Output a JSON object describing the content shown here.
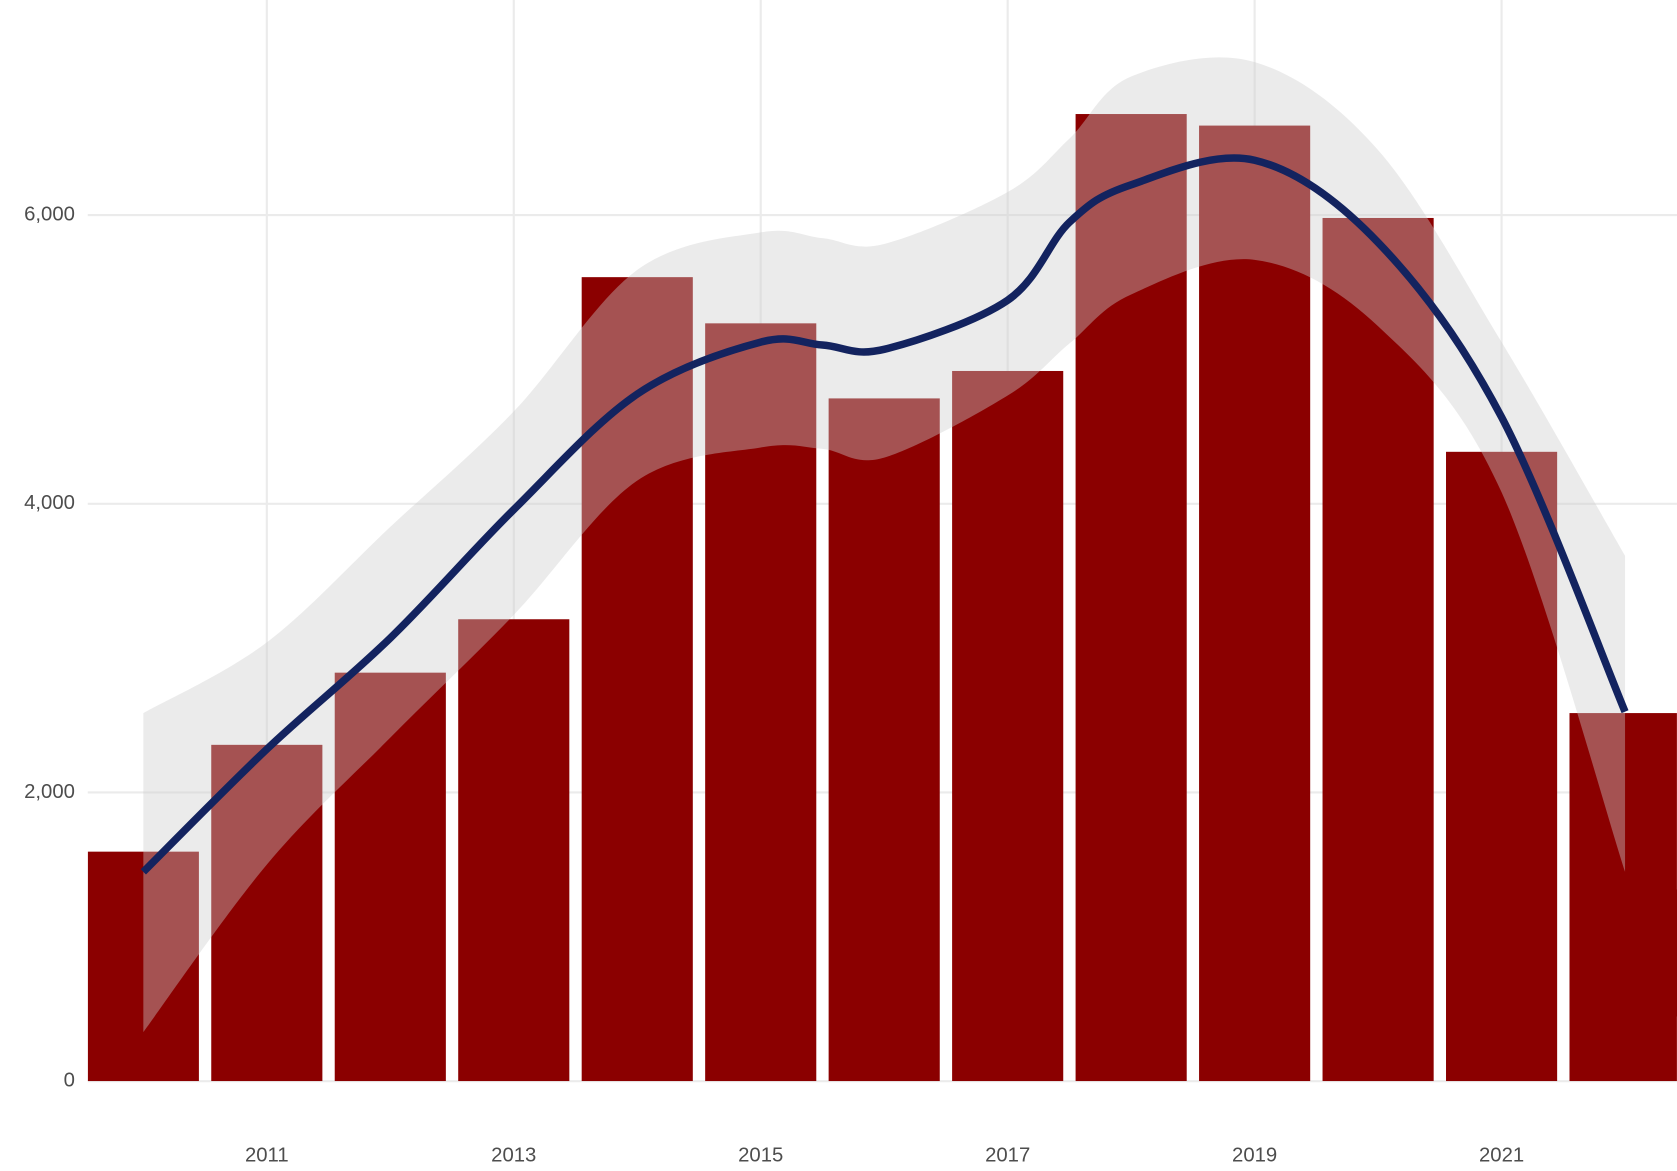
{
  "chart_data": {
    "type": "bar",
    "x": [
      2010,
      2011,
      2012,
      2013,
      2014,
      2015,
      2016,
      2017,
      2018,
      2019,
      2020,
      2021,
      2022
    ],
    "values": [
      1590,
      2330,
      2830,
      3200,
      5570,
      5250,
      4730,
      4920,
      6700,
      6620,
      5980,
      4360,
      2550
    ],
    "color": "#8b0000",
    "smooth": {
      "x": [
        2010,
        2011,
        2012,
        2013,
        2014,
        2015,
        2015.5,
        2016,
        2017,
        2017.5,
        2018,
        2019,
        2020,
        2021,
        2022
      ],
      "values": [
        1450,
        2300,
        3070,
        3960,
        4760,
        5120,
        5100,
        5070,
        5410,
        5950,
        6210,
        6380,
        5810,
        4600,
        2560
      ],
      "lower": [
        340,
        1500,
        2380,
        3230,
        4160,
        4390,
        4380,
        4320,
        4750,
        5110,
        5450,
        5690,
        5230,
        4080,
        1450
      ],
      "upper": [
        2550,
        3040,
        3840,
        4640,
        5620,
        5880,
        5840,
        5800,
        6160,
        6530,
        6960,
        7060,
        6450,
        5120,
        3640
      ],
      "color": "#13235f",
      "band_color": "#cccccc"
    },
    "xlim": [
      2009.55,
      2022.42
    ],
    "xticks": [
      2011,
      2013,
      2015,
      2017,
      2019,
      2021
    ],
    "ylim": [
      0,
      7490
    ],
    "yticks": [
      0,
      {
        "value": 2000,
        "label": "2,000"
      },
      {
        "value": 4000,
        "label": "4,000"
      },
      {
        "value": 6000,
        "label": "6,000"
      }
    ],
    "grid": true
  }
}
